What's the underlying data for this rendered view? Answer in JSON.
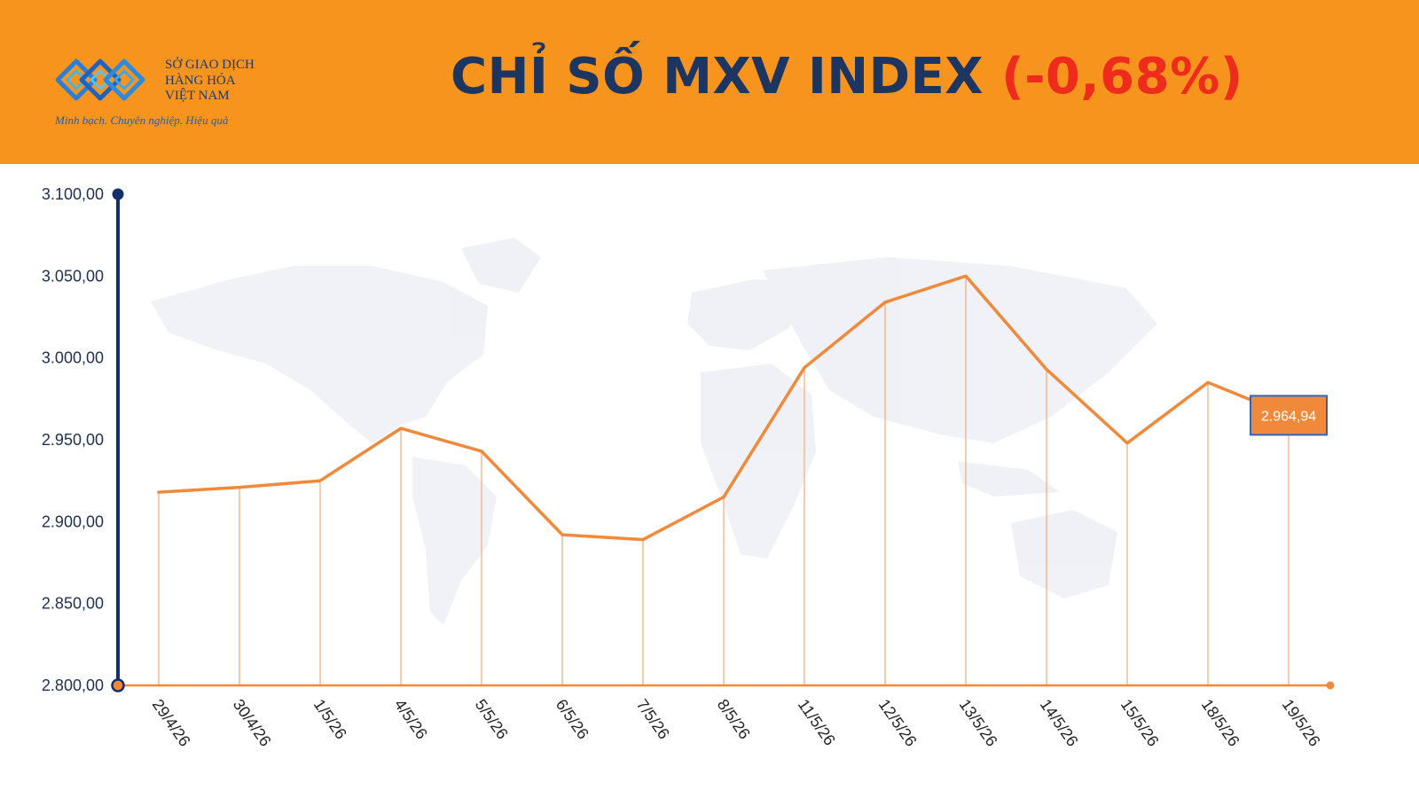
{
  "header": {
    "logo": {
      "name_lines": [
        "SỞ GIAO DỊCH",
        "HÀNG HÓA",
        "VIỆT NAM"
      ],
      "tagline": "Minh bạch. Chuyên nghiệp. Hiệu quả",
      "colors": {
        "mark": "#1e88e5",
        "text": "#1b3a6b"
      }
    },
    "title": "CHỈ SỐ MXV INDEX",
    "change": "(-0,68%)",
    "colors": {
      "background": "#f7941d",
      "title": "#1c3561",
      "change": "#ef2b1c"
    }
  },
  "chart_data": {
    "type": "line",
    "categories": [
      "29/4/26",
      "30/4/26",
      "1/5/26",
      "4/5/26",
      "5/5/26",
      "6/5/26",
      "7/5/26",
      "8/5/26",
      "11/5/26",
      "12/5/26",
      "13/5/26",
      "14/5/26",
      "15/5/26",
      "18/5/26",
      "19/5/26"
    ],
    "values": [
      2918,
      2921,
      2925,
      2957,
      2943,
      2892,
      2889,
      2915,
      2994,
      3034,
      3050,
      2993,
      2948,
      2985,
      2964.94
    ],
    "ylim": [
      2800,
      3100
    ],
    "yticks": [
      "2.800,00",
      "2.850,00",
      "2.900,00",
      "2.950,00",
      "3.000,00",
      "3.050,00",
      "3.100,00"
    ],
    "ytick_values": [
      2800,
      2850,
      2900,
      2950,
      3000,
      3050,
      3100
    ],
    "last_value_label": "2.964,94",
    "grid": false,
    "colors": {
      "line": "#f0893a",
      "drop_lines": "#f6a873",
      "y_axis": "#13306b",
      "x_axis": "#f0893a",
      "label_box": "#f0893a",
      "label_border": "#2a66c8"
    }
  }
}
